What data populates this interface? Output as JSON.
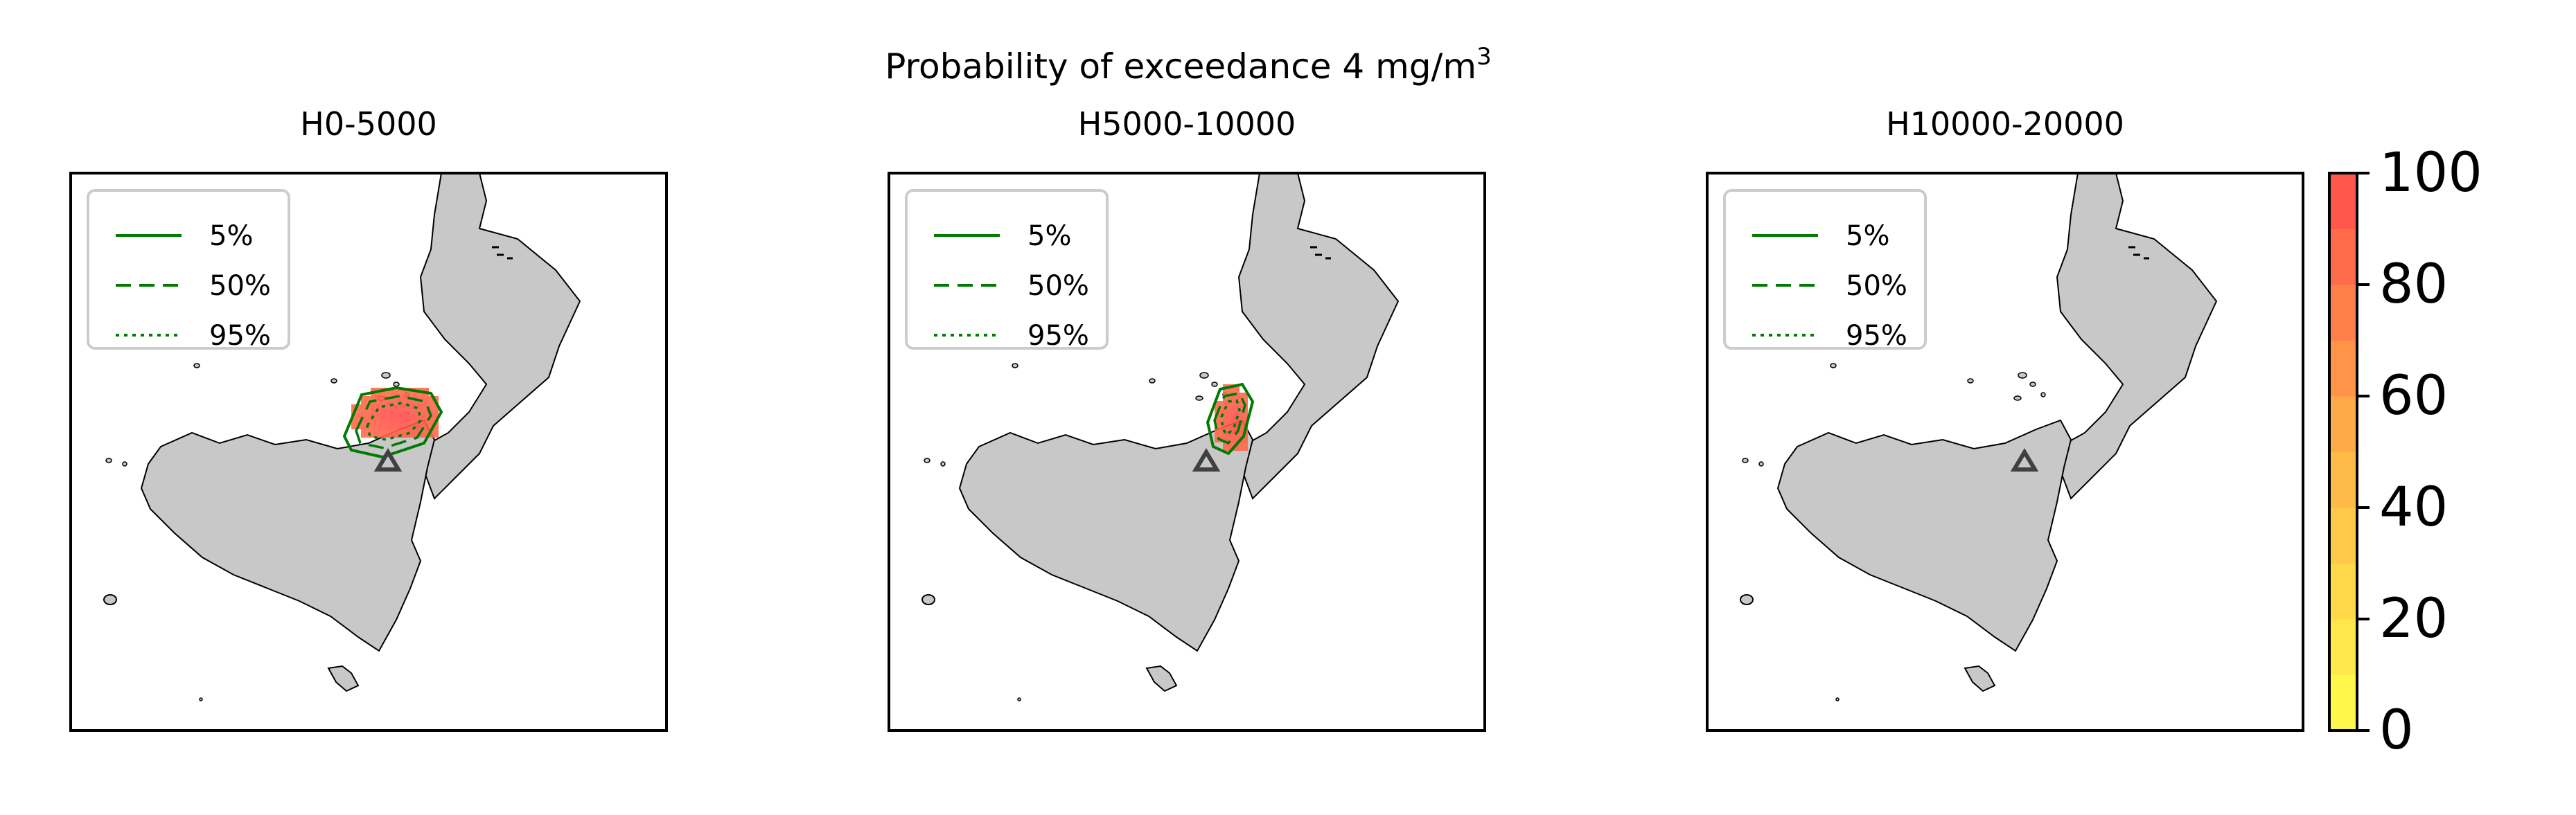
{
  "title": {
    "main": "Probability of exceedance 4 mg/m",
    "superscript": "3"
  },
  "panels": [
    {
      "label": "H0-5000",
      "plume": {
        "present": true,
        "extent": "large"
      }
    },
    {
      "label": "H5000-10000",
      "plume": {
        "present": true,
        "extent": "small"
      }
    },
    {
      "label": "H10000-20000",
      "plume": {
        "present": false
      }
    }
  ],
  "legend": {
    "position": "upper-left",
    "entries": [
      {
        "label": "5%",
        "linestyle": "solid"
      },
      {
        "label": "50%",
        "linestyle": "dashed"
      },
      {
        "label": "95%",
        "linestyle": "dotted"
      }
    ],
    "line_color": "#007a00"
  },
  "colorbar": {
    "min": 0,
    "max": 100,
    "ticks": [
      "0",
      "20",
      "40",
      "60",
      "80",
      "100"
    ],
    "levels": 10,
    "color_low": "#ffff4d",
    "color_mid": "#ffb347",
    "color_high": "#ff4d4d"
  },
  "map": {
    "land_color": "#c8c8c8",
    "coast_color": "#000000",
    "volcano_marker": "triangle-icon",
    "volcano_color": "#404040"
  }
}
